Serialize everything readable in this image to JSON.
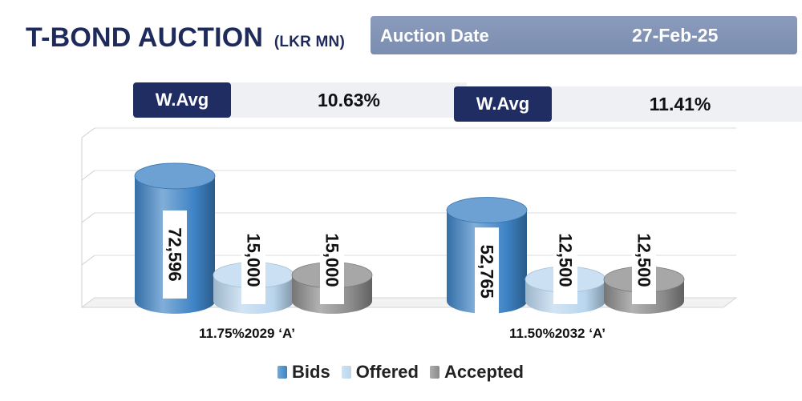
{
  "header": {
    "title": "T-BOND AUCTION",
    "unit": "(LKR MN)",
    "auction_date_label": "Auction Date",
    "auction_date": "27-Feb-25"
  },
  "wavg": [
    {
      "label": "W.Avg",
      "value": "10.63%"
    },
    {
      "label": "W.Avg",
      "value": "11.41%"
    }
  ],
  "colors": {
    "bids": "#3d82c4",
    "offered": "#b9d6ee",
    "accepted": "#8a8a8a",
    "title": "#1f2a5c"
  },
  "chart_data": {
    "type": "bar",
    "categories": [
      "11.75%2029 ‘A’",
      "11.50%2032 ‘A’"
    ],
    "series": [
      {
        "name": "Bids",
        "values": [
          72596,
          52765
        ],
        "labels": [
          "72,596",
          "52,765"
        ]
      },
      {
        "name": "Offered",
        "values": [
          15000,
          12500
        ],
        "labels": [
          "15,000",
          "12,500"
        ]
      },
      {
        "name": "Accepted",
        "values": [
          15000,
          12500
        ],
        "labels": [
          "15,000",
          "12,500"
        ]
      }
    ],
    "ylim": [
      0,
      80000
    ],
    "grid": true,
    "legend": "bottom"
  }
}
